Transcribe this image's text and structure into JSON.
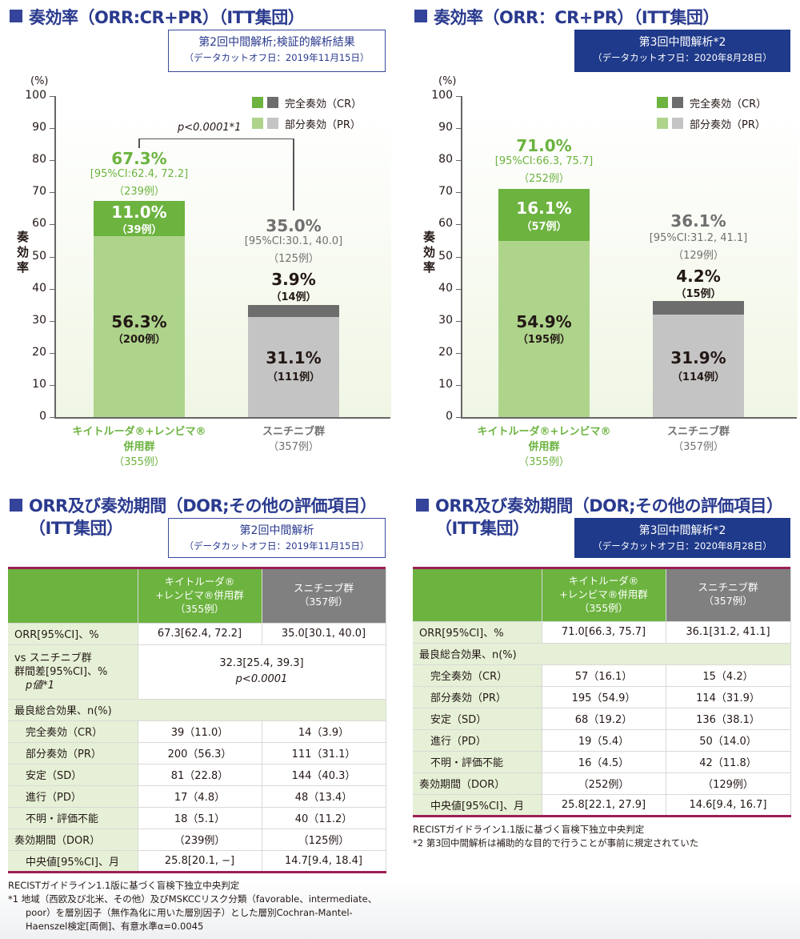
{
  "left_chart": {
    "title": "奏効率（ORR:CR+PR）（ITT集団）",
    "box_line1": "第2回中間解析;検証的解析結果",
    "box_line2": "（データカットオフ日：2019年11月15日）",
    "unit": "(%)",
    "ylabel": "奏効率",
    "legend_cr": "完全奏効（CR）",
    "legend_pr": "部分奏効（PR）",
    "p_value": "p<0.0001*1",
    "arm1": {
      "name_l1": "キイトルーダ®+レンビマ®",
      "name_l2": "併用群",
      "n": "（355例）",
      "total": "67.3%",
      "ci": "[95%CI:62.4, 72.2]",
      "total_n": "（239例）",
      "cr": "11.0%",
      "cr_n": "（39例）",
      "pr": "56.3%",
      "pr_n": "（200例）"
    },
    "arm2": {
      "name_l1": "スニチニブ群",
      "n": "（357例）",
      "total": "35.0%",
      "ci": "[95%CI:30.1, 40.0]",
      "total_n": "（125例）",
      "cr": "3.9%",
      "cr_n": "（14例）",
      "pr": "31.1%",
      "pr_n": "（111例）"
    }
  },
  "right_chart": {
    "title": "奏効率（ORR：CR+PR）（ITT集団）",
    "box_line1": "第3回中間解析*2",
    "box_line2": "（データカットオフ日：2020年8月28日）",
    "unit": "(%)",
    "ylabel": "奏効率",
    "legend_cr": "完全奏効（CR）",
    "legend_pr": "部分奏効（PR）",
    "arm1": {
      "name_l1": "キイトルーダ®+レンビマ®",
      "name_l2": "併用群",
      "n": "（355例）",
      "total": "71.0%",
      "ci": "[95%CI:66.3, 75.7]",
      "total_n": "（252例）",
      "cr": "16.1%",
      "cr_n": "（57例）",
      "pr": "54.9%",
      "pr_n": "（195例）"
    },
    "arm2": {
      "name_l1": "スニチニブ群",
      "n": "（357例）",
      "total": "36.1%",
      "ci": "[95%CI:31.2, 41.1]",
      "total_n": "（129例）",
      "cr": "4.2%",
      "cr_n": "（15例）",
      "pr": "31.9%",
      "pr_n": "（114例）"
    }
  },
  "chart_data": [
    {
      "type": "bar",
      "stacked": true,
      "title": "奏効率（ORR:CR+PR）（ITT集団）第2回中間解析",
      "ylabel": "奏効率 (%)",
      "ylim": [
        0,
        100
      ],
      "yticks": [
        0,
        10,
        20,
        30,
        40,
        50,
        60,
        70,
        80,
        90,
        100
      ],
      "categories": [
        "キイトルーダ®+レンビマ®併用群",
        "スニチニブ群"
      ],
      "series": [
        {
          "name": "部分奏効（PR）",
          "values": [
            56.3,
            31.1
          ],
          "colors": [
            "#aed48c",
            "#c4c4c4"
          ]
        },
        {
          "name": "完全奏効（CR）",
          "values": [
            11.0,
            3.9
          ],
          "colors": [
            "#6cb33f",
            "#6d6d6d"
          ]
        }
      ]
    },
    {
      "type": "bar",
      "stacked": true,
      "title": "奏効率（ORR：CR+PR）（ITT集団）第3回中間解析",
      "ylabel": "奏効率 (%)",
      "ylim": [
        0,
        100
      ],
      "yticks": [
        0,
        10,
        20,
        30,
        40,
        50,
        60,
        70,
        80,
        90,
        100
      ],
      "categories": [
        "キイトルーダ®+レンビマ®併用群",
        "スニチニブ群"
      ],
      "series": [
        {
          "name": "部分奏効（PR）",
          "values": [
            54.9,
            31.9
          ],
          "colors": [
            "#aed48c",
            "#c4c4c4"
          ]
        },
        {
          "name": "完全奏効（CR）",
          "values": [
            16.1,
            4.2
          ],
          "colors": [
            "#6cb33f",
            "#6d6d6d"
          ]
        }
      ]
    }
  ],
  "left_table": {
    "title_l1": "ORR及び奏効期間（DOR;その他の評価項目）",
    "title_l2": "（ITT集団）",
    "box_line1": "第2回中間解析",
    "box_line2": "（データカットオフ日：2019年11月15日）",
    "head_arm1": [
      "キイトルーダ®",
      "+レンビマ®併用群",
      "（355例）"
    ],
    "head_arm2": [
      "スニチニブ群",
      "（357例）"
    ],
    "orr": {
      "label": "ORR[95%CI]、%",
      "a": "67.3[62.4, 72.2]",
      "b": "35.0[30.1, 40.0]"
    },
    "diff": {
      "l1": "vs スニチニブ群",
      "l2": "群間差[95%CI]、%",
      "l3": "p値*1",
      "v1": "32.3[25.4, 39.3]",
      "v2": "p<0.0001"
    },
    "best": "最良総合効果、n(%)",
    "rows": [
      {
        "label": "完全奏効（CR）",
        "a": "39（11.0）",
        "b": "14（3.9）"
      },
      {
        "label": "部分奏効（PR）",
        "a": "200（56.3）",
        "b": "111（31.1）"
      },
      {
        "label": "安定（SD）",
        "a": "81（22.8）",
        "b": "144（40.3）"
      },
      {
        "label": "進行（PD）",
        "a": "17（4.8）",
        "b": "48（13.4）"
      },
      {
        "label": "不明・評価不能",
        "a": "18（5.1）",
        "b": "40（11.2）"
      }
    ],
    "dor": {
      "label": "奏効期間（DOR）",
      "a": "（239例）",
      "b": "（125例）"
    },
    "median": {
      "label": "中央値[95%CI]、月",
      "a": "25.8[20.1, −]",
      "b": "14.7[9.4, 18.4]"
    },
    "footnotes": [
      "RECISTガイドライン1.1版に基づく盲検下独立中央判定",
      "*1 地域（西欧及び北米、その他）及びMSKCCリスク分類（favorable、intermediate、",
      "poor）を層別因子（無作為化に用いた層別因子）とした層別Cochran-Mantel-",
      "Haenszel検定[両側]、有意水準α=0.0045"
    ]
  },
  "right_table": {
    "title_l1": "ORR及び奏効期間（DOR;その他の評価項目）",
    "title_l2": "（ITT集団）",
    "box_line1": "第3回中間解析*2",
    "box_line2": "（データカットオフ日：2020年8月28日）",
    "head_arm1": [
      "キイトルーダ®",
      "+レンビマ®併用群",
      "（355例）"
    ],
    "head_arm2": [
      "スニチニブ群",
      "（357例）"
    ],
    "orr": {
      "label": "ORR[95%CI]、%",
      "a": "71.0[66.3, 75.7]",
      "b": "36.1[31.2, 41.1]"
    },
    "best": "最良総合効果、n(%)",
    "rows": [
      {
        "label": "完全奏効（CR）",
        "a": "57（16.1）",
        "b": "15（4.2）"
      },
      {
        "label": "部分奏効（PR）",
        "a": "195（54.9）",
        "b": "114（31.9）"
      },
      {
        "label": "安定（SD）",
        "a": "68（19.2）",
        "b": "136（38.1）"
      },
      {
        "label": "進行（PD）",
        "a": "19（5.4）",
        "b": "50（14.0）"
      },
      {
        "label": "不明・評価不能",
        "a": "16（4.5）",
        "b": "42（11.8）"
      }
    ],
    "dor": {
      "label": "奏効期間（DOR）",
      "a": "（252例）",
      "b": "（129例）"
    },
    "median": {
      "label": "中央値[95%CI]、月",
      "a": "25.8[22.1, 27.9]",
      "b": "14.6[9.4, 16.7]"
    },
    "footnotes": [
      "RECISTガイドライン1.1版に基づく盲検下独立中央判定",
      "*2 第3回中間解析は補助的な目的で行うことが事前に規定されていた"
    ]
  }
}
